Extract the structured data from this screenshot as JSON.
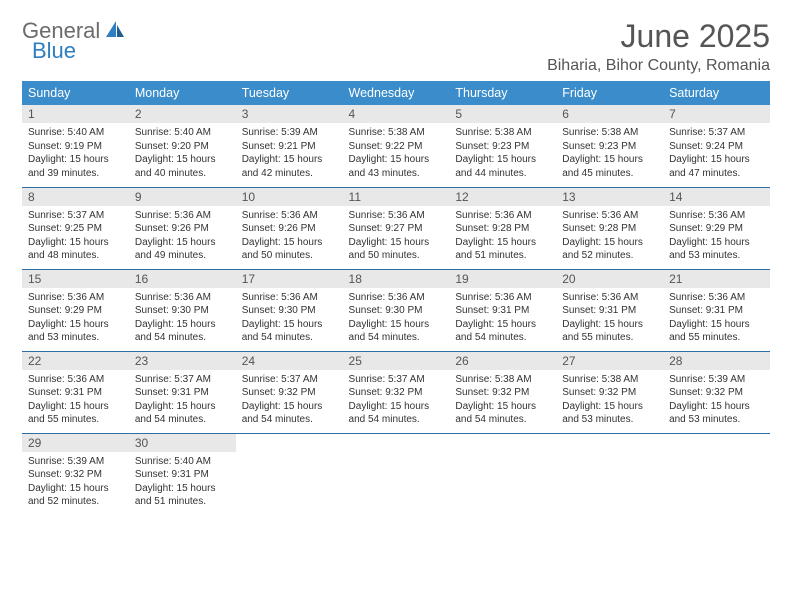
{
  "logo": {
    "general": "General",
    "blue": "Blue"
  },
  "title": "June 2025",
  "location": "Biharia, Bihor County, Romania",
  "header_bg": "#3a8cca",
  "divider_color": "#2f6ea5",
  "daynum_bg": "#e8e8e8",
  "weekdays": [
    "Sunday",
    "Monday",
    "Tuesday",
    "Wednesday",
    "Thursday",
    "Friday",
    "Saturday"
  ],
  "weeks": [
    [
      {
        "n": "1",
        "sr": "5:40 AM",
        "ss": "9:19 PM",
        "dh": "15",
        "dm": "39"
      },
      {
        "n": "2",
        "sr": "5:40 AM",
        "ss": "9:20 PM",
        "dh": "15",
        "dm": "40"
      },
      {
        "n": "3",
        "sr": "5:39 AM",
        "ss": "9:21 PM",
        "dh": "15",
        "dm": "42"
      },
      {
        "n": "4",
        "sr": "5:38 AM",
        "ss": "9:22 PM",
        "dh": "15",
        "dm": "43"
      },
      {
        "n": "5",
        "sr": "5:38 AM",
        "ss": "9:23 PM",
        "dh": "15",
        "dm": "44"
      },
      {
        "n": "6",
        "sr": "5:38 AM",
        "ss": "9:23 PM",
        "dh": "15",
        "dm": "45"
      },
      {
        "n": "7",
        "sr": "5:37 AM",
        "ss": "9:24 PM",
        "dh": "15",
        "dm": "47"
      }
    ],
    [
      {
        "n": "8",
        "sr": "5:37 AM",
        "ss": "9:25 PM",
        "dh": "15",
        "dm": "48"
      },
      {
        "n": "9",
        "sr": "5:36 AM",
        "ss": "9:26 PM",
        "dh": "15",
        "dm": "49"
      },
      {
        "n": "10",
        "sr": "5:36 AM",
        "ss": "9:26 PM",
        "dh": "15",
        "dm": "50"
      },
      {
        "n": "11",
        "sr": "5:36 AM",
        "ss": "9:27 PM",
        "dh": "15",
        "dm": "50"
      },
      {
        "n": "12",
        "sr": "5:36 AM",
        "ss": "9:28 PM",
        "dh": "15",
        "dm": "51"
      },
      {
        "n": "13",
        "sr": "5:36 AM",
        "ss": "9:28 PM",
        "dh": "15",
        "dm": "52"
      },
      {
        "n": "14",
        "sr": "5:36 AM",
        "ss": "9:29 PM",
        "dh": "15",
        "dm": "53"
      }
    ],
    [
      {
        "n": "15",
        "sr": "5:36 AM",
        "ss": "9:29 PM",
        "dh": "15",
        "dm": "53"
      },
      {
        "n": "16",
        "sr": "5:36 AM",
        "ss": "9:30 PM",
        "dh": "15",
        "dm": "54"
      },
      {
        "n": "17",
        "sr": "5:36 AM",
        "ss": "9:30 PM",
        "dh": "15",
        "dm": "54"
      },
      {
        "n": "18",
        "sr": "5:36 AM",
        "ss": "9:30 PM",
        "dh": "15",
        "dm": "54"
      },
      {
        "n": "19",
        "sr": "5:36 AM",
        "ss": "9:31 PM",
        "dh": "15",
        "dm": "54"
      },
      {
        "n": "20",
        "sr": "5:36 AM",
        "ss": "9:31 PM",
        "dh": "15",
        "dm": "55"
      },
      {
        "n": "21",
        "sr": "5:36 AM",
        "ss": "9:31 PM",
        "dh": "15",
        "dm": "55"
      }
    ],
    [
      {
        "n": "22",
        "sr": "5:36 AM",
        "ss": "9:31 PM",
        "dh": "15",
        "dm": "55"
      },
      {
        "n": "23",
        "sr": "5:37 AM",
        "ss": "9:31 PM",
        "dh": "15",
        "dm": "54"
      },
      {
        "n": "24",
        "sr": "5:37 AM",
        "ss": "9:32 PM",
        "dh": "15",
        "dm": "54"
      },
      {
        "n": "25",
        "sr": "5:37 AM",
        "ss": "9:32 PM",
        "dh": "15",
        "dm": "54"
      },
      {
        "n": "26",
        "sr": "5:38 AM",
        "ss": "9:32 PM",
        "dh": "15",
        "dm": "54"
      },
      {
        "n": "27",
        "sr": "5:38 AM",
        "ss": "9:32 PM",
        "dh": "15",
        "dm": "53"
      },
      {
        "n": "28",
        "sr": "5:39 AM",
        "ss": "9:32 PM",
        "dh": "15",
        "dm": "53"
      }
    ],
    [
      {
        "n": "29",
        "sr": "5:39 AM",
        "ss": "9:32 PM",
        "dh": "15",
        "dm": "52"
      },
      {
        "n": "30",
        "sr": "5:40 AM",
        "ss": "9:31 PM",
        "dh": "15",
        "dm": "51"
      },
      null,
      null,
      null,
      null,
      null
    ]
  ],
  "labels": {
    "sunrise": "Sunrise:",
    "sunset": "Sunset:",
    "daylight_prefix": "Daylight:",
    "hours_word": "hours",
    "and_word": "and",
    "minutes_word": "minutes."
  }
}
